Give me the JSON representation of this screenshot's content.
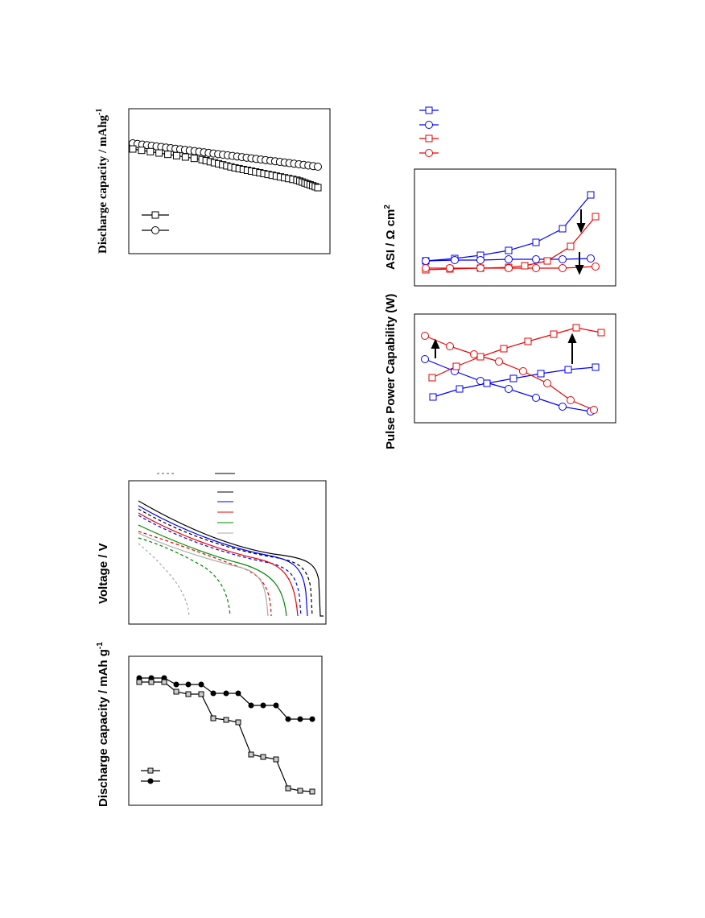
{
  "figures": [
    {
      "y_label": {
        "text": "Discharge capacity / mAhg",
        "sup": "-1"
      }
    },
    {
      "y_label": {
        "text": "Voltage   /   V"
      }
    },
    {
      "y_label": {
        "text": "Discharge capacity / mAh g",
        "sup": "-1"
      }
    },
    {
      "y_label": {
        "text": "ASI  /  Ω cm",
        "sup": "2"
      }
    },
    {
      "y_label": {
        "text": "Pulse Power Capability (W)"
      }
    }
  ]
}
